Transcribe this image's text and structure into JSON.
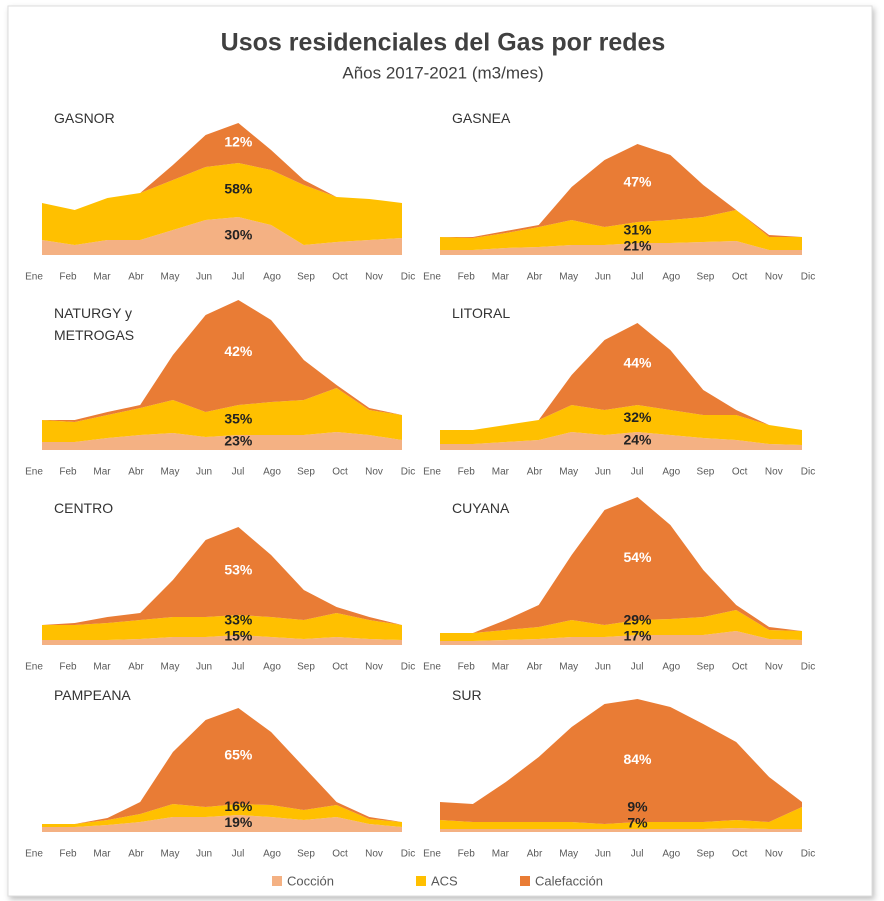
{
  "title": "Usos residenciales del Gas por redes",
  "subtitle": "Años 2017-2021 (m3/mes)",
  "chart_data": [
    {
      "type": "area",
      "title": "GASNOR",
      "categories": [
        "Ene",
        "Feb",
        "Mar",
        "Abr",
        "May",
        "Jun",
        "Jul",
        "Ago",
        "Sep",
        "Oct",
        "Nov",
        "Dic"
      ],
      "ylim": [
        0,
        150
      ],
      "series": [
        {
          "name": "Cocción",
          "color": "#f4b183",
          "values": [
            15,
            10,
            15,
            15,
            25,
            35,
            38,
            30,
            10,
            13,
            15,
            17
          ]
        },
        {
          "name": "ACS",
          "color": "#ffc000",
          "values": [
            37,
            35,
            42,
            47,
            50,
            53,
            54,
            55,
            60,
            45,
            41,
            35
          ]
        },
        {
          "name": "Calefacción",
          "color": "#e97c35",
          "values": [
            0,
            0,
            0,
            0,
            15,
            32,
            40,
            20,
            5,
            0,
            0,
            0
          ]
        }
      ],
      "labels": [
        "30%",
        "58%",
        "12%"
      ]
    },
    {
      "type": "area",
      "title": "GASNEA",
      "categories": [
        "Ene",
        "Feb",
        "Mar",
        "Abr",
        "May",
        "Jun",
        "Jul",
        "Ago",
        "Sep",
        "Oct",
        "Nov",
        "Dic"
      ],
      "ylim": [
        0,
        150
      ],
      "series": [
        {
          "name": "Cocción",
          "color": "#f4b183",
          "values": [
            5,
            5,
            7,
            8,
            10,
            10,
            12,
            12,
            13,
            14,
            5,
            5
          ]
        },
        {
          "name": "ACS",
          "color": "#ffc000",
          "values": [
            13,
            12,
            15,
            20,
            25,
            18,
            21,
            23,
            25,
            31,
            13,
            13
          ]
        },
        {
          "name": "Calefacción",
          "color": "#e97c35",
          "values": [
            0,
            1,
            2,
            2,
            33,
            67,
            78,
            65,
            32,
            0,
            2,
            0
          ]
        }
      ],
      "labels": [
        "21%",
        "31%",
        "47%"
      ]
    },
    {
      "type": "area",
      "title": "NATURGY y METROGAS",
      "categories": [
        "Ene",
        "Feb",
        "Mar",
        "Abr",
        "May",
        "Jun",
        "Jul",
        "Ago",
        "Sep",
        "Oct",
        "Nov",
        "Dic"
      ],
      "ylim": [
        0,
        150
      ],
      "series": [
        {
          "name": "Cocción",
          "color": "#f4b183",
          "values": [
            8,
            8,
            12,
            15,
            17,
            13,
            15,
            15,
            15,
            18,
            15,
            10
          ]
        },
        {
          "name": "ACS",
          "color": "#ffc000",
          "values": [
            22,
            20,
            23,
            27,
            33,
            25,
            30,
            33,
            35,
            44,
            25,
            25
          ]
        },
        {
          "name": "Calefacción",
          "color": "#e97c35",
          "values": [
            0,
            2,
            3,
            3,
            45,
            97,
            105,
            82,
            40,
            3,
            2,
            0
          ]
        }
      ],
      "labels": [
        "23%",
        "35%",
        "42%"
      ]
    },
    {
      "type": "area",
      "title": "LITORAL",
      "categories": [
        "Ene",
        "Feb",
        "Mar",
        "Abr",
        "May",
        "Jun",
        "Jul",
        "Ago",
        "Sep",
        "Oct",
        "Nov",
        "Dic"
      ],
      "ylim": [
        0,
        150
      ],
      "series": [
        {
          "name": "Cocción",
          "color": "#f4b183",
          "values": [
            6,
            6,
            8,
            10,
            18,
            15,
            18,
            15,
            12,
            10,
            6,
            5
          ]
        },
        {
          "name": "ACS",
          "color": "#ffc000",
          "values": [
            14,
            14,
            17,
            20,
            27,
            25,
            27,
            25,
            23,
            25,
            19,
            15
          ]
        },
        {
          "name": "Calefacción",
          "color": "#e97c35",
          "values": [
            0,
            0,
            0,
            0,
            30,
            70,
            82,
            60,
            25,
            5,
            0,
            0
          ]
        }
      ],
      "labels": [
        "24%",
        "32%",
        "44%"
      ]
    },
    {
      "type": "area",
      "title": "CENTRO",
      "categories": [
        "Ene",
        "Feb",
        "Mar",
        "Abr",
        "May",
        "Jun",
        "Jul",
        "Ago",
        "Sep",
        "Oct",
        "Nov",
        "Dic"
      ],
      "ylim": [
        0,
        150
      ],
      "series": [
        {
          "name": "Cocción",
          "color": "#f4b183",
          "values": [
            5,
            5,
            5,
            6,
            8,
            8,
            10,
            8,
            6,
            8,
            6,
            5
          ]
        },
        {
          "name": "ACS",
          "color": "#ffc000",
          "values": [
            15,
            15,
            17,
            19,
            20,
            20,
            20,
            20,
            19,
            24,
            19,
            15
          ]
        },
        {
          "name": "Calefacción",
          "color": "#e97c35",
          "values": [
            0,
            2,
            6,
            7,
            37,
            77,
            88,
            62,
            30,
            6,
            3,
            0
          ]
        }
      ],
      "labels": [
        "15%",
        "33%",
        "53%"
      ]
    },
    {
      "type": "area",
      "title": "CUYANA",
      "categories": [
        "Ene",
        "Feb",
        "Mar",
        "Abr",
        "May",
        "Jun",
        "Jul",
        "Ago",
        "Sep",
        "Oct",
        "Nov",
        "Dic"
      ],
      "ylim": [
        0,
        150
      ],
      "series": [
        {
          "name": "Cocción",
          "color": "#f4b183",
          "values": [
            4,
            4,
            5,
            6,
            8,
            8,
            10,
            10,
            10,
            14,
            6,
            5
          ]
        },
        {
          "name": "ACS",
          "color": "#ffc000",
          "values": [
            8,
            8,
            10,
            12,
            17,
            12,
            15,
            16,
            18,
            21,
            9,
            9
          ]
        },
        {
          "name": "Calefacción",
          "color": "#e97c35",
          "values": [
            0,
            0,
            10,
            22,
            65,
            115,
            123,
            94,
            47,
            5,
            3,
            0
          ]
        }
      ],
      "labels": [
        "17%",
        "29%",
        "54%"
      ]
    },
    {
      "type": "area",
      "title": "PAMPEANA",
      "categories": [
        "Ene",
        "Feb",
        "Mar",
        "Abr",
        "May",
        "Jun",
        "Jul",
        "Ago",
        "Sep",
        "Oct",
        "Nov",
        "Dic"
      ],
      "ylim": [
        0,
        150
      ],
      "series": [
        {
          "name": "Cocción",
          "color": "#f4b183",
          "values": [
            5,
            5,
            7,
            10,
            15,
            15,
            17,
            15,
            12,
            15,
            8,
            5
          ]
        },
        {
          "name": "ACS",
          "color": "#ffc000",
          "values": [
            3,
            3,
            5,
            8,
            13,
            10,
            11,
            12,
            10,
            12,
            5,
            5
          ]
        },
        {
          "name": "Calefacción",
          "color": "#e97c35",
          "values": [
            0,
            0,
            2,
            12,
            52,
            87,
            96,
            73,
            43,
            3,
            2,
            0
          ]
        }
      ],
      "labels": [
        "19%",
        "16%",
        "65%"
      ]
    },
    {
      "type": "area",
      "title": "SUR",
      "categories": [
        "Ene",
        "Feb",
        "Mar",
        "Abr",
        "May",
        "Jun",
        "Jul",
        "Ago",
        "Sep",
        "Oct",
        "Nov",
        "Dic"
      ],
      "ylim": [
        0,
        150
      ],
      "series": [
        {
          "name": "Cocción",
          "color": "#f4b183",
          "values": [
            3,
            3,
            3,
            3,
            3,
            3,
            3,
            3,
            3,
            4,
            3,
            3
          ]
        },
        {
          "name": "ACS",
          "color": "#ffc000",
          "values": [
            9,
            7,
            7,
            7,
            7,
            5,
            7,
            7,
            7,
            8,
            7,
            22
          ]
        },
        {
          "name": "Calefacción",
          "color": "#e97c35",
          "values": [
            18,
            18,
            40,
            65,
            95,
            120,
            123,
            115,
            98,
            78,
            45,
            5
          ]
        }
      ],
      "labels": [
        "7%",
        "9%",
        "84%"
      ]
    }
  ]
}
